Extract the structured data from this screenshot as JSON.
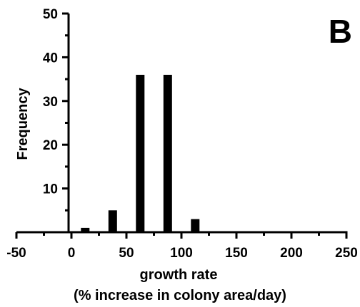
{
  "chart_data": {
    "type": "bar",
    "panel_label": "B",
    "xlabel": "growth rate",
    "xlabel_line2": "(% increase in colony area/day)",
    "ylabel": "Frequency",
    "xlim": [
      -50,
      250
    ],
    "ylim": [
      0,
      50
    ],
    "x_ticks": [
      -50,
      0,
      50,
      100,
      150,
      200,
      250
    ],
    "y_ticks": [
      10,
      20,
      30,
      40,
      50
    ],
    "x": [
      12.5,
      37.5,
      62.5,
      87.5,
      112.5
    ],
    "values": [
      1,
      5,
      36,
      36,
      3
    ],
    "bin_width": 25,
    "bar_color": "#000000",
    "grid": false
  }
}
